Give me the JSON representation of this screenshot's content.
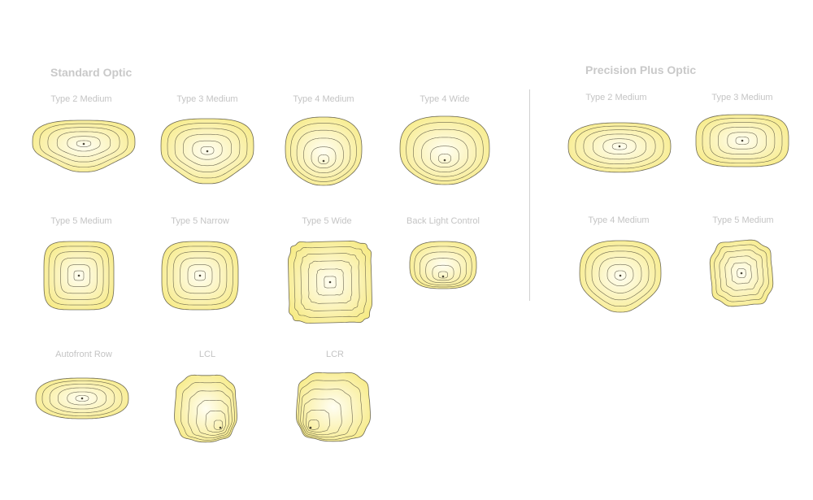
{
  "sections": [
    {
      "title": "Standard Optic",
      "items": [
        {
          "label": "Type 2 Medium"
        },
        {
          "label": "Type 3 Medium"
        },
        {
          "label": "Type 4 Medium"
        },
        {
          "label": "Type 4 Wide"
        },
        {
          "label": "Type 5 Medium"
        },
        {
          "label": "Type 5 Narrow"
        },
        {
          "label": "Type 5 Wide"
        },
        {
          "label": "Back Light Control"
        },
        {
          "label": "Autofront Row"
        },
        {
          "label": "LCL"
        },
        {
          "label": "LCR"
        }
      ]
    },
    {
      "title": "Precision Plus Optic",
      "items": [
        {
          "label": "Type 2 Medium"
        },
        {
          "label": "Type 3 Medium"
        },
        {
          "label": "Type 4 Medium"
        },
        {
          "label": "Type 5 Medium"
        }
      ]
    }
  ],
  "colors": {
    "fill_outer": "#f7eb86",
    "fill_inner": "#fffef2",
    "contour": "#4a4636",
    "label": "#c4c4c4",
    "divider": "#d0d0d0"
  }
}
